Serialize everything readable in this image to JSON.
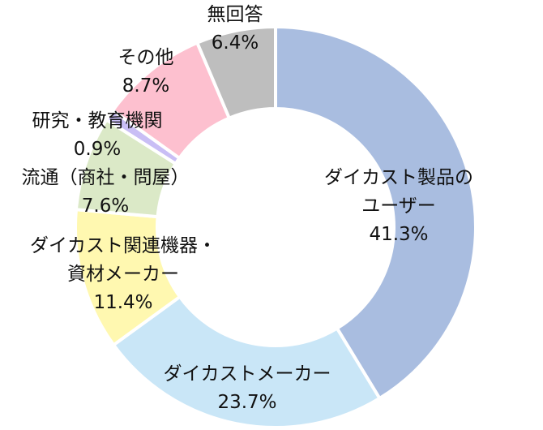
{
  "chart_data": {
    "type": "pie",
    "donut": true,
    "start": "top",
    "direction": "clockwise",
    "slices": [
      {
        "label": [
          "ダイカスト製品の",
          "ユーザー"
        ],
        "value": 41.3,
        "value_label": "41.3%",
        "color": "#a9bde0"
      },
      {
        "label": [
          "ダイカストメーカー"
        ],
        "value": 23.7,
        "value_label": "23.7%",
        "color": "#c9e6f7"
      },
      {
        "label": [
          "ダイカスト関連機器・",
          "資材メーカー"
        ],
        "value": 11.4,
        "value_label": "11.4%",
        "color": "#fff8b0"
      },
      {
        "label": [
          "流通（商社・問屋）"
        ],
        "value": 7.6,
        "value_label": "7.6%",
        "color": "#dbe9c7"
      },
      {
        "label": [
          "研究・教育機関"
        ],
        "value": 0.9,
        "value_label": "0.9%",
        "color": "#c9bef5"
      },
      {
        "label": [
          "その他"
        ],
        "value": 8.7,
        "value_label": "8.7%",
        "color": "#fdc0cf"
      },
      {
        "label": [
          "無回答"
        ],
        "value": 6.4,
        "value_label": "6.4%",
        "color": "#bebebe"
      }
    ]
  }
}
